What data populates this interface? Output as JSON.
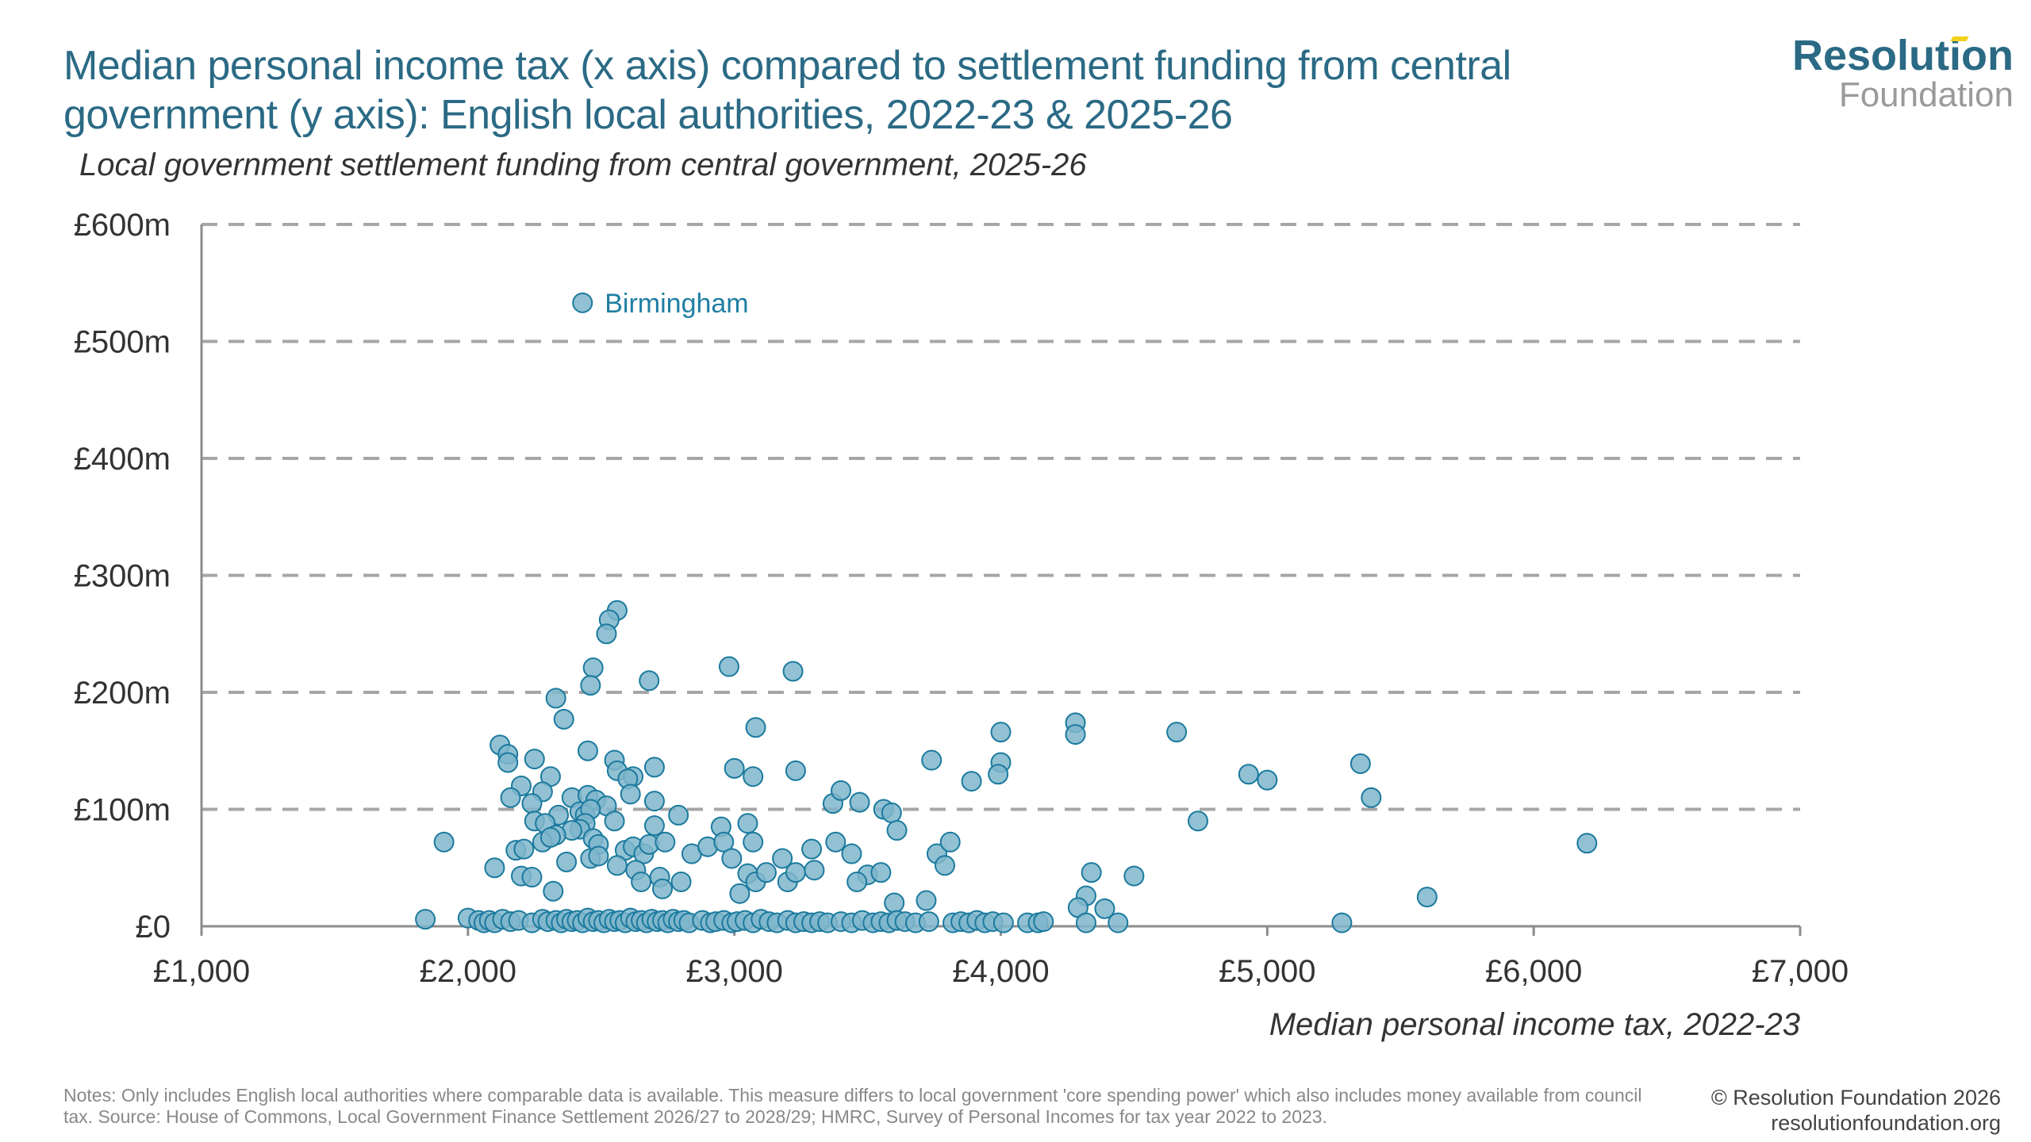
{
  "header": {
    "title": "Median personal income tax (x axis) compared to settlement funding from central government (y axis): English local authorities, 2022-23 & 2025-26",
    "subtitle": "Local government settlement funding from central government, 2025-26"
  },
  "logo": {
    "line1": "Resolution",
    "line2": "Foundation"
  },
  "footer": {
    "notes": "Notes: Only includes English local authorities where comparable data is available. This measure differs to local government 'core spending power' which also includes money available from council tax. Source: House of Commons, Local Government Finance Settlement 2026/27 to 2028/29; HMRC, Survey of Personal Incomes for tax year 2022 to 2023.",
    "copyright": "© Resolution Foundation 2026",
    "website": "resolutionfoundation.org"
  },
  "colors": {
    "point_fill": "#7fb6cb",
    "point_stroke": "#1b7a9e",
    "title": "#2b6a85",
    "grid": "#a6a6a6"
  },
  "chart_data": {
    "type": "scatter",
    "title": "Median personal income tax (x axis) compared to settlement funding from central government (y axis): English local authorities, 2022-23 & 2025-26",
    "xlabel": "Median personal income tax, 2022-23",
    "ylabel": "Local government settlement funding from central government, 2025-26",
    "xlim": [
      1000,
      7000
    ],
    "ylim": [
      0,
      600
    ],
    "x_ticks": [
      1000,
      2000,
      3000,
      4000,
      5000,
      6000,
      7000
    ],
    "x_tick_labels": [
      "£1,000",
      "£2,000",
      "£3,000",
      "£4,000",
      "£5,000",
      "£6,000",
      "£7,000"
    ],
    "y_ticks": [
      0,
      100,
      200,
      300,
      400,
      500,
      600
    ],
    "y_tick_labels": [
      "£0",
      "£100m",
      "£200m",
      "£300m",
      "£400m",
      "£500m",
      "£600m"
    ],
    "grid": "horizontal-dashed",
    "annotations": [
      {
        "label": "Birmingham",
        "x": 2430,
        "y": 533
      }
    ],
    "series": [
      {
        "name": "English local authorities",
        "points": [
          [
            2430,
            533
          ],
          [
            2560,
            270
          ],
          [
            2530,
            262
          ],
          [
            2520,
            250
          ],
          [
            2470,
            221
          ],
          [
            2460,
            206
          ],
          [
            2330,
            195
          ],
          [
            2360,
            177
          ],
          [
            2680,
            210
          ],
          [
            2980,
            222
          ],
          [
            3220,
            218
          ],
          [
            2120,
            155
          ],
          [
            2150,
            147
          ],
          [
            2150,
            140
          ],
          [
            2450,
            150
          ],
          [
            2550,
            142
          ],
          [
            2560,
            133
          ],
          [
            2620,
            128
          ],
          [
            2600,
            126
          ],
          [
            2250,
            143
          ],
          [
            2310,
            128
          ],
          [
            2700,
            136
          ],
          [
            3000,
            135
          ],
          [
            3070,
            128
          ],
          [
            3230,
            133
          ],
          [
            3080,
            170
          ],
          [
            2200,
            120
          ],
          [
            2280,
            115
          ],
          [
            2160,
            110
          ],
          [
            2240,
            105
          ],
          [
            2390,
            110
          ],
          [
            2450,
            112
          ],
          [
            2480,
            108
          ],
          [
            2520,
            103
          ],
          [
            2610,
            113
          ],
          [
            2700,
            107
          ],
          [
            2420,
            98
          ],
          [
            2440,
            95
          ],
          [
            2460,
            100
          ],
          [
            2340,
            95
          ],
          [
            2250,
            90
          ],
          [
            2290,
            88
          ],
          [
            2440,
            88
          ],
          [
            2550,
            90
          ],
          [
            2420,
            83
          ],
          [
            2390,
            82
          ],
          [
            2330,
            78
          ],
          [
            1910,
            72
          ],
          [
            2180,
            65
          ],
          [
            2210,
            66
          ],
          [
            2280,
            72
          ],
          [
            2310,
            76
          ],
          [
            2470,
            75
          ],
          [
            2490,
            70
          ],
          [
            2590,
            65
          ],
          [
            2620,
            68
          ],
          [
            2660,
            62
          ],
          [
            2680,
            70
          ],
          [
            2700,
            86
          ],
          [
            2740,
            72
          ],
          [
            2790,
            95
          ],
          [
            2100,
            50
          ],
          [
            2200,
            43
          ],
          [
            2240,
            42
          ],
          [
            2370,
            55
          ],
          [
            2460,
            58
          ],
          [
            2490,
            60
          ],
          [
            2560,
            52
          ],
          [
            2630,
            48
          ],
          [
            2650,
            38
          ],
          [
            2720,
            42
          ],
          [
            2730,
            32
          ],
          [
            2800,
            38
          ],
          [
            2320,
            30
          ],
          [
            2840,
            62
          ],
          [
            2900,
            68
          ],
          [
            2950,
            85
          ],
          [
            2960,
            72
          ],
          [
            2990,
            58
          ],
          [
            3050,
            88
          ],
          [
            3070,
            72
          ],
          [
            3020,
            28
          ],
          [
            3050,
            45
          ],
          [
            3080,
            38
          ],
          [
            3120,
            46
          ],
          [
            3180,
            58
          ],
          [
            3200,
            38
          ],
          [
            3230,
            46
          ],
          [
            3290,
            66
          ],
          [
            3300,
            48
          ],
          [
            3370,
            105
          ],
          [
            3400,
            116
          ],
          [
            3470,
            106
          ],
          [
            3560,
            100
          ],
          [
            3590,
            97
          ],
          [
            3610,
            82
          ],
          [
            3380,
            72
          ],
          [
            3440,
            62
          ],
          [
            3500,
            44
          ],
          [
            3550,
            46
          ],
          [
            3460,
            38
          ],
          [
            3600,
            20
          ],
          [
            3720,
            22
          ],
          [
            3740,
            142
          ],
          [
            3760,
            62
          ],
          [
            3790,
            52
          ],
          [
            3810,
            72
          ],
          [
            3890,
            124
          ],
          [
            4000,
            166
          ],
          [
            4000,
            140
          ],
          [
            3990,
            130
          ],
          [
            4280,
            174
          ],
          [
            4280,
            164
          ],
          [
            4740,
            90
          ],
          [
            4660,
            166
          ],
          [
            4930,
            130
          ],
          [
            5000,
            125
          ],
          [
            5350,
            139
          ],
          [
            5390,
            110
          ],
          [
            4340,
            46
          ],
          [
            4320,
            26
          ],
          [
            4290,
            16
          ],
          [
            4390,
            15
          ],
          [
            4500,
            43
          ],
          [
            4440,
            3
          ],
          [
            4320,
            3
          ],
          [
            5280,
            3
          ],
          [
            5600,
            25
          ],
          [
            6200,
            71
          ],
          [
            1840,
            6
          ],
          [
            2000,
            7
          ],
          [
            2040,
            5
          ],
          [
            2060,
            3
          ],
          [
            2080,
            5
          ],
          [
            2100,
            3
          ],
          [
            2130,
            6
          ],
          [
            2160,
            4
          ],
          [
            2190,
            5
          ],
          [
            2240,
            3
          ],
          [
            2280,
            6
          ],
          [
            2300,
            4
          ],
          [
            2330,
            5
          ],
          [
            2350,
            3
          ],
          [
            2370,
            6
          ],
          [
            2390,
            4
          ],
          [
            2410,
            5
          ],
          [
            2430,
            3
          ],
          [
            2450,
            7
          ],
          [
            2470,
            4
          ],
          [
            2490,
            5
          ],
          [
            2510,
            3
          ],
          [
            2530,
            6
          ],
          [
            2550,
            4
          ],
          [
            2570,
            5
          ],
          [
            2590,
            3
          ],
          [
            2610,
            7
          ],
          [
            2630,
            4
          ],
          [
            2650,
            5
          ],
          [
            2670,
            3
          ],
          [
            2690,
            6
          ],
          [
            2710,
            4
          ],
          [
            2730,
            5
          ],
          [
            2750,
            3
          ],
          [
            2770,
            6
          ],
          [
            2790,
            4
          ],
          [
            2810,
            5
          ],
          [
            2830,
            3
          ],
          [
            2880,
            5
          ],
          [
            2910,
            3
          ],
          [
            2930,
            4
          ],
          [
            2960,
            5
          ],
          [
            2990,
            3
          ],
          [
            3010,
            4
          ],
          [
            3040,
            5
          ],
          [
            3070,
            3
          ],
          [
            3100,
            6
          ],
          [
            3130,
            4
          ],
          [
            3160,
            3
          ],
          [
            3200,
            5
          ],
          [
            3230,
            3
          ],
          [
            3260,
            4
          ],
          [
            3290,
            3
          ],
          [
            3320,
            4
          ],
          [
            3350,
            3
          ],
          [
            3400,
            4
          ],
          [
            3440,
            3
          ],
          [
            3480,
            5
          ],
          [
            3520,
            3
          ],
          [
            3550,
            4
          ],
          [
            3580,
            3
          ],
          [
            3610,
            5
          ],
          [
            3640,
            4
          ],
          [
            3680,
            3
          ],
          [
            3730,
            4
          ],
          [
            3820,
            3
          ],
          [
            3850,
            4
          ],
          [
            3880,
            3
          ],
          [
            3910,
            5
          ],
          [
            3940,
            3
          ],
          [
            3970,
            4
          ],
          [
            4010,
            3
          ],
          [
            4100,
            3
          ],
          [
            4140,
            3
          ],
          [
            4160,
            4
          ]
        ]
      }
    ]
  }
}
